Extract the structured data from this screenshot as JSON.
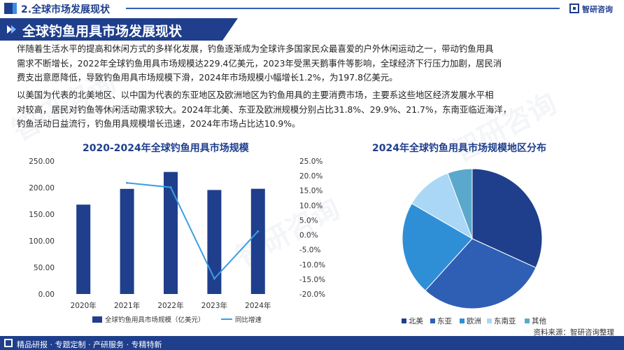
{
  "header": {
    "section": "2.全球市场发展现状",
    "logo": "智研咨询"
  },
  "banner": {
    "title": "全球钓鱼用具市场发展现状"
  },
  "paragraphs": {
    "p1": [
      "伴随着生活水平的提高和休闲方式的多样化发展，钓鱼逐渐成为全球许多国家民众最喜爱的户外休闲运动之一，带动钓鱼用具",
      "需求不断增长，2022年全球钓鱼用具市场规模达229.4亿美元，2023年受黑天鹅事件等影响，全球经济下行压力加剧，居民消",
      "费支出意愿降低，导致钓鱼用具市场规模下滑，2024年市场规模小幅增长1.2%，为197.8亿美元。"
    ],
    "p2": [
      "以美国为代表的北美地区、以中国为代表的东亚地区及欧洲地区为钓鱼用具的主要消费市场，主要系这些地区经济发展水平相",
      "对较高，居民对钓鱼等休闲活动需求较大。2024年北美、东亚及欧洲规模分别占比31.8%、29.9%、21.7%，东南亚临近海洋，",
      "钓鱼活动日益流行，钓鱼用具规模增长迅速，2024年市场占比达10.9%。"
    ]
  },
  "chart_data": [
    {
      "type": "bar",
      "title": "2020-2024年全球钓鱼用具市场规模",
      "categories": [
        "2020年",
        "2021年",
        "2022年",
        "2023年",
        "2024年"
      ],
      "series": [
        {
          "name": "全球钓鱼用具市场规模（亿美元）",
          "type": "bar",
          "axis": "left",
          "values": [
            168.0,
            197.6,
            229.4,
            195.5,
            197.8
          ],
          "color": "#1f3f8c"
        },
        {
          "name": "同比增速",
          "type": "line",
          "axis": "right",
          "values": [
            null,
            17.6,
            16.1,
            -14.8,
            1.2
          ],
          "color": "#3a9ee6"
        }
      ],
      "y_left": {
        "min": 0,
        "max": 250,
        "step": 50,
        "ticks": [
          "0.00",
          "50.00",
          "100.00",
          "150.00",
          "200.00",
          "250.00"
        ]
      },
      "y_right": {
        "min": -20,
        "max": 25,
        "step": 5,
        "ticks": [
          "-20.0%",
          "-15.0%",
          "-10.0%",
          "-5.0%",
          "0.0%",
          "5.0%",
          "10.0%",
          "15.0%",
          "20.0%",
          "25.0%"
        ]
      },
      "legend": "bottom"
    },
    {
      "type": "pie",
      "title": "2024年全球钓鱼用具市场规模地区分布",
      "labels": [
        "北美",
        "东亚",
        "欧洲",
        "东南亚",
        "其他"
      ],
      "values": [
        31.8,
        29.9,
        21.7,
        10.9,
        5.7
      ],
      "colors": [
        "#1f3f8c",
        "#2f5fb5",
        "#2f8fd6",
        "#a9d7f5",
        "#5aa9cc"
      ],
      "legend": "bottom"
    }
  ],
  "footer": {
    "items": "精品研报 · 专题定制 · 产研服务 · 专精特新",
    "source": "资料来源：智研咨询整理"
  }
}
